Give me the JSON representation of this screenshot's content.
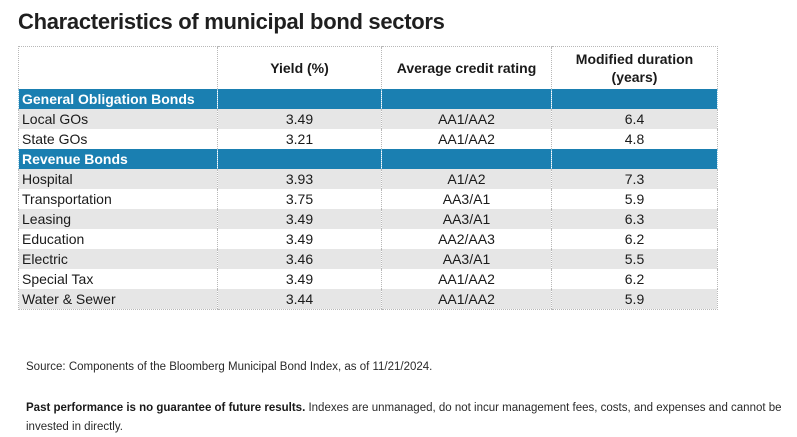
{
  "title": "Characteristics of municipal bond sectors",
  "table": {
    "headers": [
      "",
      "Yield (%)",
      "Average credit rating",
      "Modified duration (years)"
    ],
    "sections": [
      {
        "name": "General Obligation Bonds",
        "rows": [
          {
            "sector": "Local GOs",
            "yield": "3.49",
            "rating": "AA1/AA2",
            "duration": "6.4"
          },
          {
            "sector": "State GOs",
            "yield": "3.21",
            "rating": "AA1/AA2",
            "duration": "4.8"
          }
        ]
      },
      {
        "name": "Revenue Bonds",
        "rows": [
          {
            "sector": "Hospital",
            "yield": "3.93",
            "rating": "A1/A2",
            "duration": "7.3"
          },
          {
            "sector": "Transportation",
            "yield": "3.75",
            "rating": "AA3/A1",
            "duration": "5.9"
          },
          {
            "sector": "Leasing",
            "yield": "3.49",
            "rating": "AA3/A1",
            "duration": "6.3"
          },
          {
            "sector": "Education",
            "yield": "3.49",
            "rating": "AA2/AA3",
            "duration": "6.2"
          },
          {
            "sector": "Electric",
            "yield": "3.46",
            "rating": "AA3/A1",
            "duration": "5.5"
          },
          {
            "sector": "Special Tax",
            "yield": "3.49",
            "rating": "AA1/AA2",
            "duration": "6.2"
          },
          {
            "sector": "Water & Sewer",
            "yield": "3.44",
            "rating": "AA1/AA2",
            "duration": "5.9"
          }
        ]
      }
    ]
  },
  "source": "Source: Components of the Bloomberg Municipal Bond Index, as of 11/21/2024.",
  "disclaimer": {
    "bold": "Past performance is no guarantee of future results.",
    "text": " Indexes are unmanaged, do not incur management fees, costs, and expenses and cannot be invested in directly."
  },
  "colors": {
    "section_band": "#1a7fb1",
    "row_shade": "#e6e6e6"
  }
}
